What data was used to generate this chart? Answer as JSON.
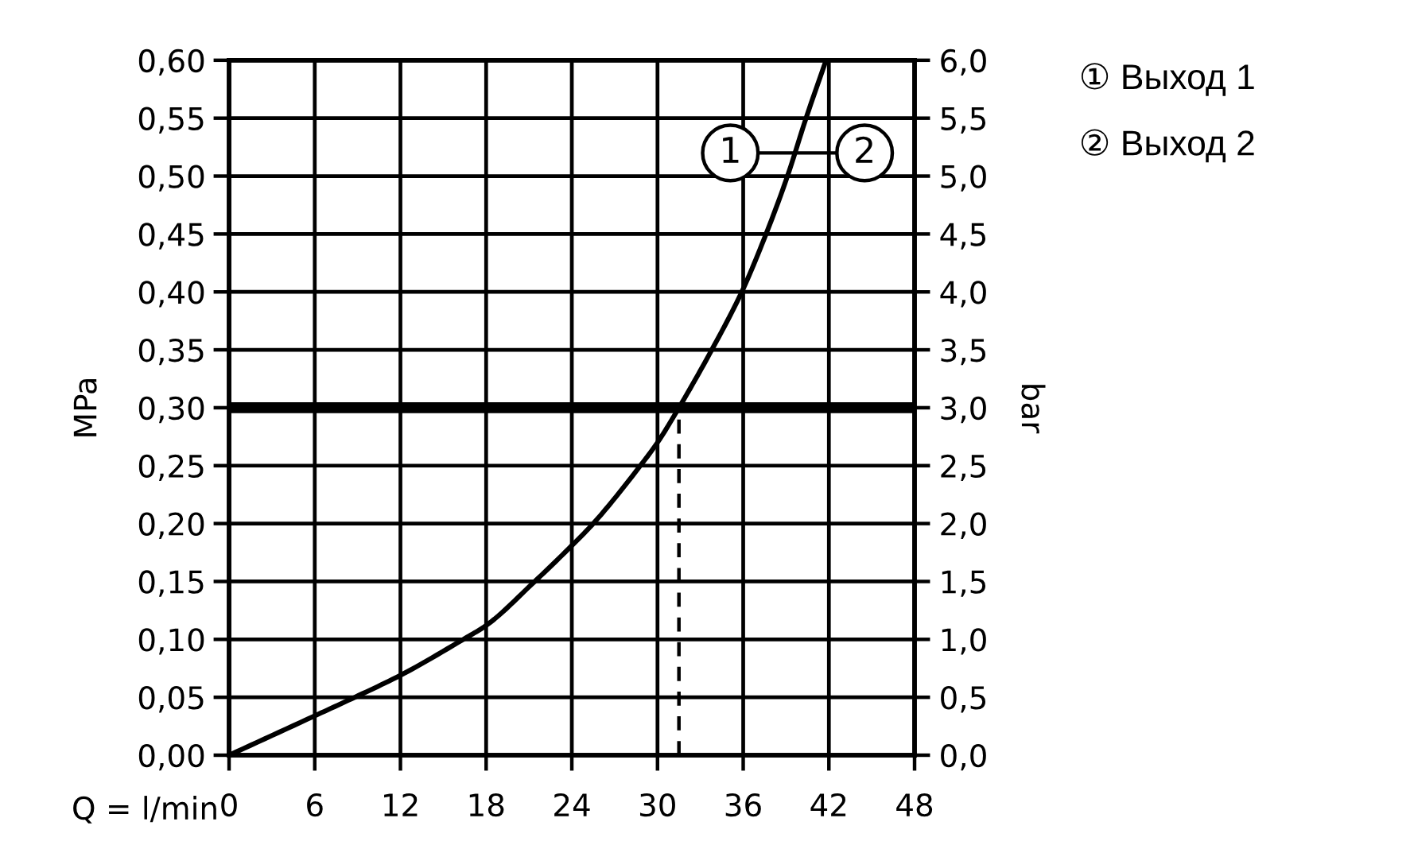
{
  "chart_data": {
    "type": "line",
    "xlabel": "Q = l/min",
    "ylabel": "MPa",
    "y2label": "bar",
    "series": [
      {
        "x": [
          0,
          6,
          8.8,
          12,
          16.4,
          18,
          21.4,
          24,
          25.5,
          28.8,
          30,
          31.5,
          33.8,
          35.9,
          37.6,
          39.1,
          40.4,
          41.8
        ],
        "values": [
          0,
          0.034,
          0.05,
          0.069,
          0.1,
          0.112,
          0.15,
          0.181,
          0.2,
          0.25,
          0.27,
          0.3,
          0.35,
          0.4,
          0.45,
          0.5,
          0.55,
          0.6
        ],
        "color": "#000000"
      },
      {
        "x": [
          31.5,
          31.5
        ],
        "values": [
          0,
          0.3
        ],
        "color": "#000000",
        "line_style": "dashed"
      }
    ],
    "xlim": [
      0,
      48
    ],
    "xticks": [
      0,
      6,
      12,
      18,
      24,
      30,
      36,
      42,
      48
    ],
    "ylim": [
      0,
      0.6
    ],
    "yticks": [
      {
        "value": 0,
        "label": "0,00"
      },
      {
        "value": 0.05,
        "label": "0,05"
      },
      {
        "value": 0.1,
        "label": "0,10"
      },
      {
        "value": 0.15,
        "label": "0,15"
      },
      {
        "value": 0.2,
        "label": "0,20"
      },
      {
        "value": 0.25,
        "label": "0,25"
      },
      {
        "value": 0.3,
        "label": "0,30"
      },
      {
        "value": 0.35,
        "label": "0,35"
      },
      {
        "value": 0.4,
        "label": "0,40"
      },
      {
        "value": 0.45,
        "label": "0,45"
      },
      {
        "value": 0.5,
        "label": "0,50"
      },
      {
        "value": 0.55,
        "label": "0,55"
      },
      {
        "value": 0.6,
        "label": "0,60"
      }
    ],
    "y2lim": [
      0,
      6
    ],
    "y2ticks": [
      {
        "value": 0,
        "label": "0,0"
      },
      {
        "value": 0.5,
        "label": "0,5"
      },
      {
        "value": 1,
        "label": "1,0"
      },
      {
        "value": 1.5,
        "label": "1,5"
      },
      {
        "value": 2,
        "label": "2,0"
      },
      {
        "value": 2.5,
        "label": "2,5"
      },
      {
        "value": 3,
        "label": "3,0"
      },
      {
        "value": 3.5,
        "label": "3,5"
      },
      {
        "value": 4,
        "label": "4,0"
      },
      {
        "value": 4.5,
        "label": "4,5"
      },
      {
        "value": 5,
        "label": "5,0"
      },
      {
        "value": 5.5,
        "label": "5,5"
      },
      {
        "value": 6,
        "label": "6,0"
      }
    ],
    "ref_lines": [
      {
        "axis": "y",
        "value": 0.3,
        "color": "#000000"
      }
    ],
    "grid": true,
    "annotations": [
      {
        "text": "1",
        "x": 35.1,
        "y": 0.52
      },
      {
        "text": "2",
        "x": 44.5,
        "y": 0.52
      },
      "① Выход 1",
      "② Выход 2"
    ]
  }
}
